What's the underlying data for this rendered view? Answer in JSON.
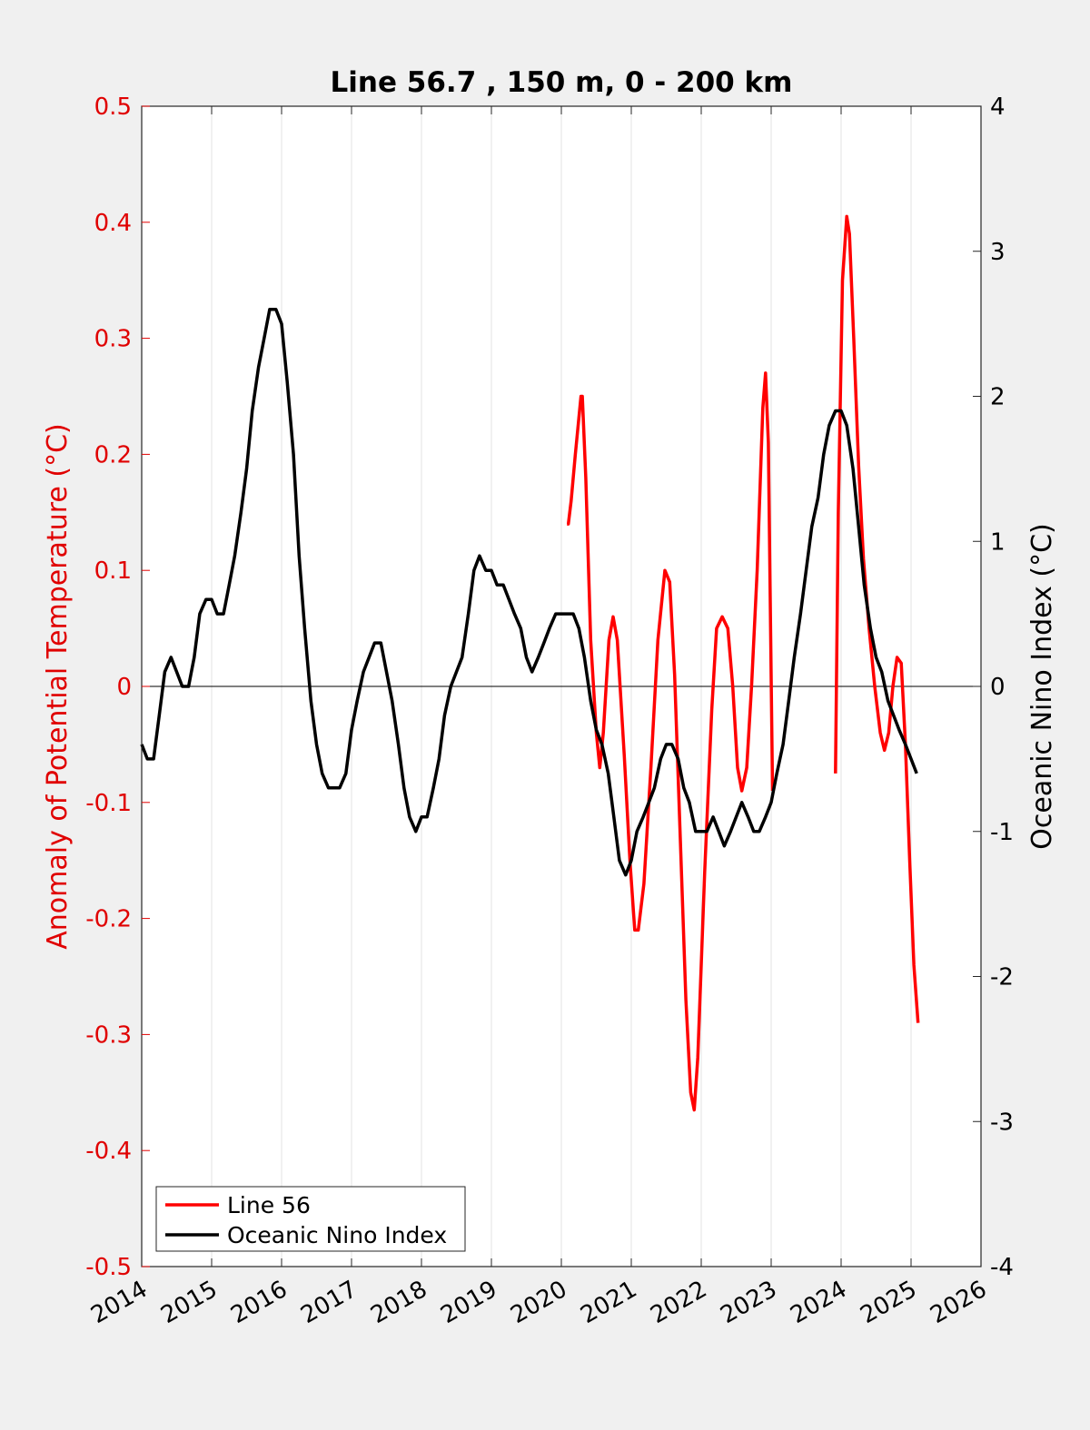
{
  "chart_data": {
    "type": "line",
    "title": "Line 56.7 , 150 m, 0 - 200 km",
    "ylabel_left": "Anomaly of Potential Temperature (°C)",
    "ylabel_right": "Oceanic Nino Index (°C)",
    "xlim": [
      2014,
      2026
    ],
    "ylim_left": [
      -0.5,
      0.5
    ],
    "ylim_right": [
      -4,
      4
    ],
    "x_ticks": [
      "2014",
      "2015",
      "2016",
      "2017",
      "2018",
      "2019",
      "2020",
      "2021",
      "2022",
      "2023",
      "2024",
      "2025",
      "2026"
    ],
    "y_left_ticks": [
      "0.5",
      "0.4",
      "0.3",
      "0.2",
      "0.1",
      "0",
      "-0.1",
      "-0.2",
      "-0.3",
      "-0.4",
      "-0.5"
    ],
    "y_right_ticks": [
      "4",
      "3",
      "2",
      "1",
      "0",
      "-1",
      "-2",
      "-3",
      "-4"
    ],
    "grid": "vertical",
    "legend_position": "bottom-left",
    "colors": {
      "line56": "#ff0000",
      "oni": "#000000",
      "left_axis": "#e00000"
    },
    "series": [
      {
        "name": "Line 56",
        "axis": "left",
        "points": [
          [
            2020.08,
            0.14
          ],
          [
            2020.1,
            0.14
          ],
          [
            2020.14,
            0.16
          ],
          [
            2020.2,
            0.2
          ],
          [
            2020.28,
            0.25
          ],
          [
            2020.3,
            0.25
          ],
          [
            2020.35,
            0.18
          ],
          [
            2020.42,
            0.04
          ],
          [
            2020.5,
            -0.04
          ],
          [
            2020.55,
            -0.07
          ],
          [
            2020.6,
            -0.04
          ],
          [
            2020.68,
            0.04
          ],
          [
            2020.74,
            0.06
          ],
          [
            2020.8,
            0.04
          ],
          [
            2020.9,
            -0.06
          ],
          [
            2020.98,
            -0.15
          ],
          [
            2021.05,
            -0.21
          ],
          [
            2021.1,
            -0.21
          ],
          [
            2021.18,
            -0.17
          ],
          [
            2021.28,
            -0.07
          ],
          [
            2021.38,
            0.04
          ],
          [
            2021.48,
            0.1
          ],
          [
            2021.55,
            0.09
          ],
          [
            2021.62,
            0.01
          ],
          [
            2021.7,
            -0.13
          ],
          [
            2021.78,
            -0.27
          ],
          [
            2021.85,
            -0.35
          ],
          [
            2021.9,
            -0.365
          ],
          [
            2021.95,
            -0.32
          ],
          [
            2022.05,
            -0.16
          ],
          [
            2022.15,
            -0.02
          ],
          [
            2022.22,
            0.05
          ],
          [
            2022.3,
            0.06
          ],
          [
            2022.38,
            0.05
          ],
          [
            2022.45,
            0.0
          ],
          [
            2022.52,
            -0.07
          ],
          [
            2022.58,
            -0.09
          ],
          [
            2022.65,
            -0.07
          ],
          [
            2022.72,
            0.0
          ],
          [
            2022.8,
            0.1
          ],
          [
            2022.88,
            0.24
          ],
          [
            2022.92,
            0.27
          ],
          [
            2022.96,
            0.21
          ],
          [
            2023.02,
            -0.09
          ],
          [
            2023.92,
            -0.075
          ],
          [
            2023.96,
            0.15
          ],
          [
            2024.02,
            0.35
          ],
          [
            2024.08,
            0.405
          ],
          [
            2024.12,
            0.39
          ],
          [
            2024.18,
            0.3
          ],
          [
            2024.25,
            0.19
          ],
          [
            2024.32,
            0.11
          ],
          [
            2024.4,
            0.05
          ],
          [
            2024.48,
            0.0
          ],
          [
            2024.56,
            -0.04
          ],
          [
            2024.62,
            -0.055
          ],
          [
            2024.68,
            -0.04
          ],
          [
            2024.74,
            0.0
          ],
          [
            2024.8,
            0.025
          ],
          [
            2024.86,
            0.02
          ],
          [
            2024.92,
            -0.05
          ],
          [
            2024.98,
            -0.15
          ],
          [
            2025.04,
            -0.24
          ],
          [
            2025.1,
            -0.29
          ]
        ]
      },
      {
        "name": "Oceanic Nino Index",
        "axis": "right",
        "points": [
          [
            2014.0,
            -0.4
          ],
          [
            2014.08,
            -0.5
          ],
          [
            2014.17,
            -0.5
          ],
          [
            2014.25,
            -0.2
          ],
          [
            2014.33,
            0.1
          ],
          [
            2014.42,
            0.2
          ],
          [
            2014.5,
            0.1
          ],
          [
            2014.58,
            0.0
          ],
          [
            2014.67,
            0.0
          ],
          [
            2014.75,
            0.2
          ],
          [
            2014.83,
            0.5
          ],
          [
            2014.92,
            0.6
          ],
          [
            2015.0,
            0.6
          ],
          [
            2015.08,
            0.5
          ],
          [
            2015.17,
            0.5
          ],
          [
            2015.25,
            0.7
          ],
          [
            2015.33,
            0.9
          ],
          [
            2015.42,
            1.2
          ],
          [
            2015.5,
            1.5
          ],
          [
            2015.58,
            1.9
          ],
          [
            2015.67,
            2.2
          ],
          [
            2015.75,
            2.4
          ],
          [
            2015.83,
            2.6
          ],
          [
            2015.92,
            2.6
          ],
          [
            2016.0,
            2.5
          ],
          [
            2016.08,
            2.1
          ],
          [
            2016.17,
            1.6
          ],
          [
            2016.25,
            0.9
          ],
          [
            2016.33,
            0.4
          ],
          [
            2016.42,
            -0.1
          ],
          [
            2016.5,
            -0.4
          ],
          [
            2016.58,
            -0.6
          ],
          [
            2016.67,
            -0.7
          ],
          [
            2016.75,
            -0.7
          ],
          [
            2016.83,
            -0.7
          ],
          [
            2016.92,
            -0.6
          ],
          [
            2017.0,
            -0.3
          ],
          [
            2017.08,
            -0.1
          ],
          [
            2017.17,
            0.1
          ],
          [
            2017.25,
            0.2
          ],
          [
            2017.33,
            0.3
          ],
          [
            2017.42,
            0.3
          ],
          [
            2017.5,
            0.1
          ],
          [
            2017.58,
            -0.1
          ],
          [
            2017.67,
            -0.4
          ],
          [
            2017.75,
            -0.7
          ],
          [
            2017.83,
            -0.9
          ],
          [
            2017.92,
            -1.0
          ],
          [
            2018.0,
            -0.9
          ],
          [
            2018.08,
            -0.9
          ],
          [
            2018.17,
            -0.7
          ],
          [
            2018.25,
            -0.5
          ],
          [
            2018.33,
            -0.2
          ],
          [
            2018.42,
            0.0
          ],
          [
            2018.5,
            0.1
          ],
          [
            2018.58,
            0.2
          ],
          [
            2018.67,
            0.5
          ],
          [
            2018.75,
            0.8
          ],
          [
            2018.83,
            0.9
          ],
          [
            2018.92,
            0.8
          ],
          [
            2019.0,
            0.8
          ],
          [
            2019.08,
            0.7
          ],
          [
            2019.17,
            0.7
          ],
          [
            2019.25,
            0.6
          ],
          [
            2019.33,
            0.5
          ],
          [
            2019.42,
            0.4
          ],
          [
            2019.5,
            0.2
          ],
          [
            2019.58,
            0.1
          ],
          [
            2019.67,
            0.2
          ],
          [
            2019.75,
            0.3
          ],
          [
            2019.83,
            0.4
          ],
          [
            2019.92,
            0.5
          ],
          [
            2020.0,
            0.5
          ],
          [
            2020.08,
            0.5
          ],
          [
            2020.17,
            0.5
          ],
          [
            2020.25,
            0.4
          ],
          [
            2020.33,
            0.2
          ],
          [
            2020.42,
            -0.1
          ],
          [
            2020.5,
            -0.3
          ],
          [
            2020.58,
            -0.4
          ],
          [
            2020.67,
            -0.6
          ],
          [
            2020.75,
            -0.9
          ],
          [
            2020.83,
            -1.2
          ],
          [
            2020.92,
            -1.3
          ],
          [
            2021.0,
            -1.2
          ],
          [
            2021.08,
            -1.0
          ],
          [
            2021.17,
            -0.9
          ],
          [
            2021.25,
            -0.8
          ],
          [
            2021.33,
            -0.7
          ],
          [
            2021.42,
            -0.5
          ],
          [
            2021.5,
            -0.4
          ],
          [
            2021.58,
            -0.4
          ],
          [
            2021.67,
            -0.5
          ],
          [
            2021.75,
            -0.7
          ],
          [
            2021.83,
            -0.8
          ],
          [
            2021.92,
            -1.0
          ],
          [
            2022.0,
            -1.0
          ],
          [
            2022.08,
            -1.0
          ],
          [
            2022.17,
            -0.9
          ],
          [
            2022.25,
            -1.0
          ],
          [
            2022.33,
            -1.1
          ],
          [
            2022.42,
            -1.0
          ],
          [
            2022.5,
            -0.9
          ],
          [
            2022.58,
            -0.8
          ],
          [
            2022.67,
            -0.9
          ],
          [
            2022.75,
            -1.0
          ],
          [
            2022.83,
            -1.0
          ],
          [
            2022.92,
            -0.9
          ],
          [
            2023.0,
            -0.8
          ],
          [
            2023.08,
            -0.6
          ],
          [
            2023.17,
            -0.4
          ],
          [
            2023.25,
            -0.1
          ],
          [
            2023.33,
            0.2
          ],
          [
            2023.42,
            0.5
          ],
          [
            2023.5,
            0.8
          ],
          [
            2023.58,
            1.1
          ],
          [
            2023.67,
            1.3
          ],
          [
            2023.75,
            1.6
          ],
          [
            2023.83,
            1.8
          ],
          [
            2023.92,
            1.9
          ],
          [
            2024.0,
            1.9
          ],
          [
            2024.08,
            1.8
          ],
          [
            2024.17,
            1.5
          ],
          [
            2024.25,
            1.1
          ],
          [
            2024.33,
            0.7
          ],
          [
            2024.42,
            0.4
          ],
          [
            2024.5,
            0.2
          ],
          [
            2024.58,
            0.1
          ],
          [
            2024.67,
            -0.1
          ],
          [
            2024.75,
            -0.2
          ],
          [
            2024.83,
            -0.3
          ],
          [
            2024.92,
            -0.4
          ],
          [
            2025.0,
            -0.5
          ],
          [
            2025.08,
            -0.6
          ]
        ]
      }
    ]
  }
}
